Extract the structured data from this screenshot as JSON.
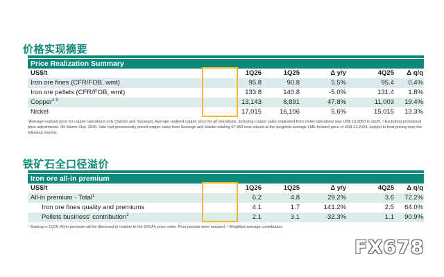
{
  "section1": {
    "title": "价格实现摘要",
    "table_title": "Price Realization Summary",
    "columns": [
      "US$/t",
      "1Q26",
      "1Q25",
      "Δ y/y",
      "4Q25",
      "Δ q/q"
    ],
    "rows": [
      {
        "label": "Iron ore fines (CFR/FOB, wmt)",
        "sup": "",
        "values": [
          "95.8",
          "90.8",
          "5.5%",
          "95.4",
          "0.4%"
        ]
      },
      {
        "label": "Iron ore pellets (CFR/FOB, wmt)",
        "sup": "",
        "values": [
          "133.8",
          "140.8",
          "-5.0%",
          "131.4",
          "1.8%"
        ]
      },
      {
        "label": "Copper",
        "sup": "1 3",
        "values": [
          "13,143",
          "8,891",
          "47.8%",
          "11,003",
          "19.4%"
        ]
      },
      {
        "label": "Nickel",
        "sup": "",
        "values": [
          "17,015",
          "16,106",
          "5.6%",
          "15,015",
          "13.3%"
        ]
      }
    ],
    "footnote": "¹Average realized price for copper operations only (Salobo and Sossego). Average realized copper price for all operations, including copper sales originated from nickel operations was US$ 13,305/t in 1Q26. ² Excluding provisional price adjustments. On March 31st, 2026, Vale had provisionally priced copper sales from Sossego and Salobo totaling 67,863 tons valued at the weighted average LME forward price of US$ 12,242/t, subject to final pricing over the following months."
  },
  "section2": {
    "title": "铁矿石全口径溢价",
    "table_title": "Iron ore all-in premium",
    "columns": [
      "US$/t",
      "1Q26",
      "1Q25",
      "Δ y/y",
      "4Q25",
      "Δ q/q"
    ],
    "rows": [
      {
        "label": "All-in premium - Total",
        "sup": "1",
        "values": [
          "6.2",
          "4.8",
          "29.2%",
          "3.6",
          "72.2%"
        ]
      },
      {
        "label": "Iron ore fines quality and premiums",
        "sup": "",
        "values": [
          "4.1",
          "1.7",
          "141.2%",
          "2.5",
          "64.0%"
        ]
      },
      {
        "label": "Pellets business' contribution",
        "sup": "2",
        "values": [
          "2.1",
          "3.1",
          "-32.3%",
          "1.1",
          "90.9%"
        ]
      }
    ],
    "footnote": "¹ Starting in 1Q26, All-in premium will be disclosed in relation to the 61%Fe price index. Prior periods were restated. ² Weighted average contribution."
  },
  "watermark": "FX678",
  "colors": {
    "accent": "#0f8a7a",
    "highlight": "#f2b833",
    "row_shade": "#dcecea"
  }
}
